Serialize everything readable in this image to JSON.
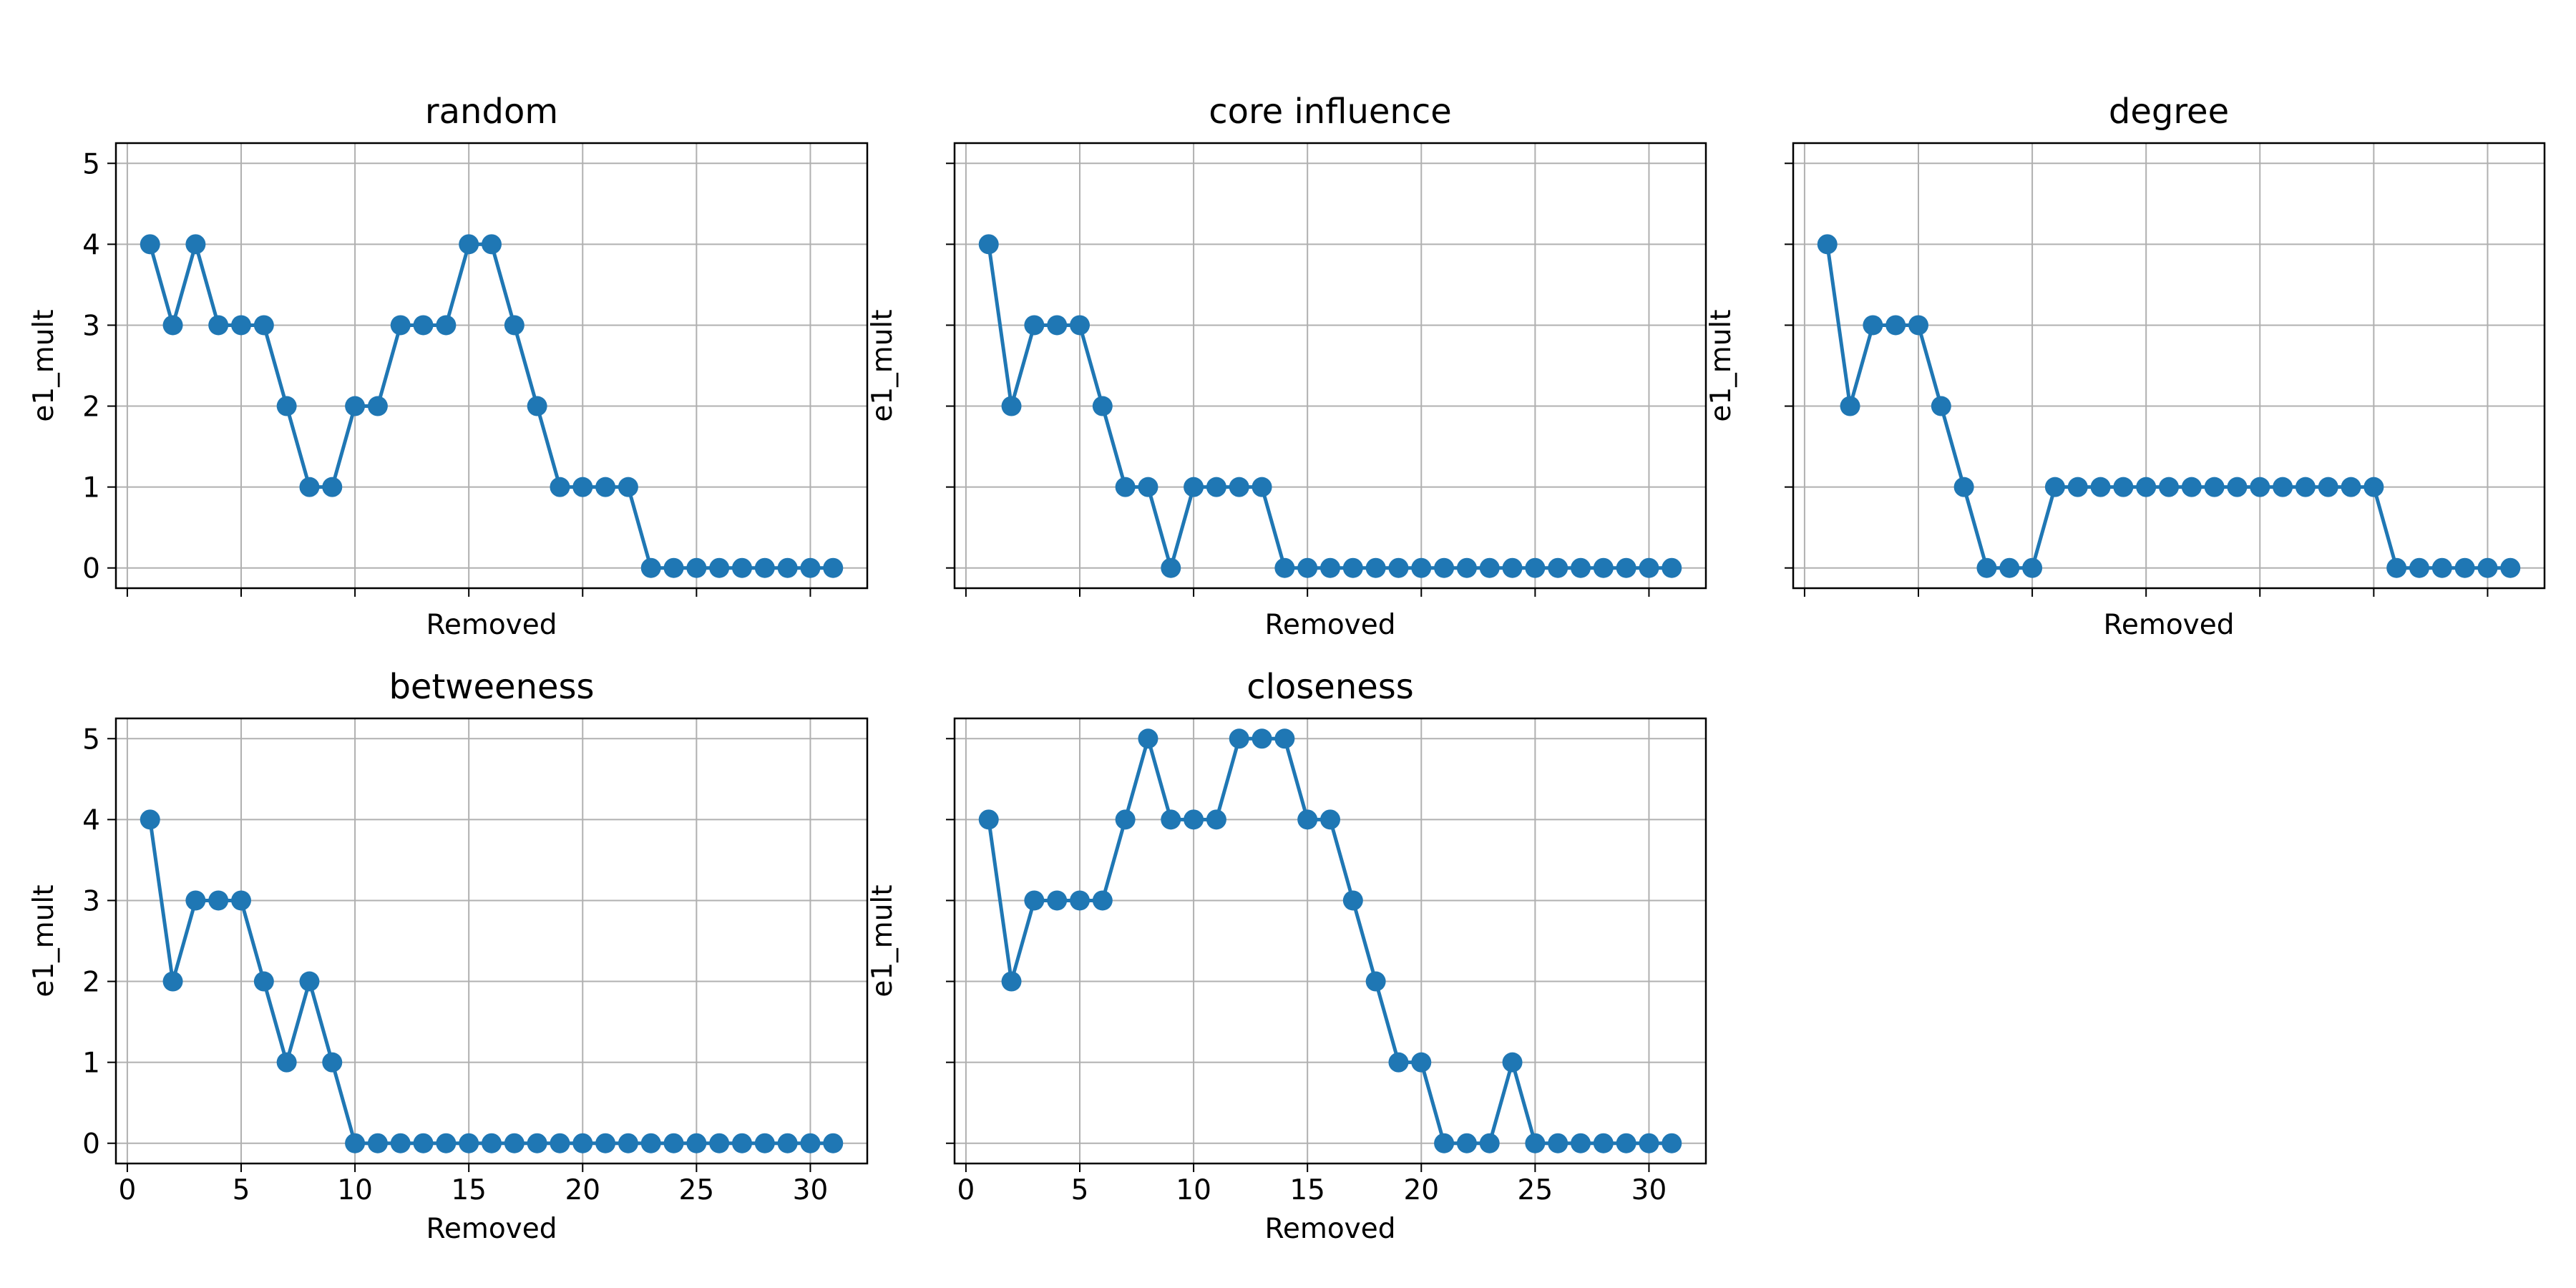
{
  "chart_data": [
    {
      "type": "line",
      "title": "random",
      "xlabel": "Removed",
      "ylabel": "e1_mult",
      "x": [
        1,
        2,
        3,
        4,
        5,
        6,
        7,
        8,
        9,
        10,
        11,
        12,
        13,
        14,
        15,
        16,
        17,
        18,
        19,
        20,
        21,
        22,
        23,
        24,
        25,
        26,
        27,
        28,
        29,
        30,
        31
      ],
      "values": [
        4,
        3,
        4,
        3,
        3,
        3,
        2,
        1,
        1,
        2,
        2,
        3,
        3,
        3,
        4,
        4,
        3,
        2,
        1,
        1,
        1,
        1,
        0,
        0,
        0,
        0,
        0,
        0,
        0,
        0,
        0
      ],
      "xlim": [
        -0.5,
        32.5
      ],
      "ylim": [
        -0.25,
        5.25
      ],
      "xticks": [
        0,
        5,
        10,
        15,
        20,
        25,
        30
      ],
      "yticks": [
        0,
        1,
        2,
        3,
        4,
        5
      ],
      "show_xtick_labels": false,
      "show_ytick_labels": true,
      "grid": true,
      "color": "#1f77b4",
      "marker": "circle"
    },
    {
      "type": "line",
      "title": "core influence",
      "xlabel": "Removed",
      "ylabel": "e1_mult",
      "x": [
        1,
        2,
        3,
        4,
        5,
        6,
        7,
        8,
        9,
        10,
        11,
        12,
        13,
        14,
        15,
        16,
        17,
        18,
        19,
        20,
        21,
        22,
        23,
        24,
        25,
        26,
        27,
        28,
        29,
        30,
        31
      ],
      "values": [
        4,
        2,
        3,
        3,
        3,
        2,
        1,
        1,
        0,
        1,
        1,
        1,
        1,
        0,
        0,
        0,
        0,
        0,
        0,
        0,
        0,
        0,
        0,
        0,
        0,
        0,
        0,
        0,
        0,
        0,
        0
      ],
      "xlim": [
        -0.5,
        32.5
      ],
      "ylim": [
        -0.25,
        5.25
      ],
      "xticks": [
        0,
        5,
        10,
        15,
        20,
        25,
        30
      ],
      "yticks": [
        0,
        1,
        2,
        3,
        4,
        5
      ],
      "show_xtick_labels": false,
      "show_ytick_labels": false,
      "grid": true,
      "color": "#1f77b4",
      "marker": "circle"
    },
    {
      "type": "line",
      "title": "degree",
      "xlabel": "Removed",
      "ylabel": "e1_mult",
      "x": [
        1,
        2,
        3,
        4,
        5,
        6,
        7,
        8,
        9,
        10,
        11,
        12,
        13,
        14,
        15,
        16,
        17,
        18,
        19,
        20,
        21,
        22,
        23,
        24,
        25,
        26,
        27,
        28,
        29,
        30,
        31
      ],
      "values": [
        4,
        2,
        3,
        3,
        3,
        2,
        1,
        0,
        0,
        0,
        1,
        1,
        1,
        1,
        1,
        1,
        1,
        1,
        1,
        1,
        1,
        1,
        1,
        1,
        1,
        0,
        0,
        0,
        0,
        0,
        0
      ],
      "xlim": [
        -0.5,
        32.5
      ],
      "ylim": [
        -0.25,
        5.25
      ],
      "xticks": [
        0,
        5,
        10,
        15,
        20,
        25,
        30
      ],
      "yticks": [
        0,
        1,
        2,
        3,
        4,
        5
      ],
      "show_xtick_labels": false,
      "show_ytick_labels": false,
      "grid": true,
      "color": "#1f77b4",
      "marker": "circle"
    },
    {
      "type": "line",
      "title": "betweeness",
      "xlabel": "Removed",
      "ylabel": "e1_mult",
      "x": [
        1,
        2,
        3,
        4,
        5,
        6,
        7,
        8,
        9,
        10,
        11,
        12,
        13,
        14,
        15,
        16,
        17,
        18,
        19,
        20,
        21,
        22,
        23,
        24,
        25,
        26,
        27,
        28,
        29,
        30,
        31
      ],
      "values": [
        4,
        2,
        3,
        3,
        3,
        2,
        1,
        2,
        1,
        0,
        0,
        0,
        0,
        0,
        0,
        0,
        0,
        0,
        0,
        0,
        0,
        0,
        0,
        0,
        0,
        0,
        0,
        0,
        0,
        0,
        0
      ],
      "xlim": [
        -0.5,
        32.5
      ],
      "ylim": [
        -0.25,
        5.25
      ],
      "xticks": [
        0,
        5,
        10,
        15,
        20,
        25,
        30
      ],
      "yticks": [
        0,
        1,
        2,
        3,
        4,
        5
      ],
      "show_xtick_labels": true,
      "show_ytick_labels": true,
      "grid": true,
      "color": "#1f77b4",
      "marker": "circle"
    },
    {
      "type": "line",
      "title": "closeness",
      "xlabel": "Removed",
      "ylabel": "e1_mult",
      "x": [
        1,
        2,
        3,
        4,
        5,
        6,
        7,
        8,
        9,
        10,
        11,
        12,
        13,
        14,
        15,
        16,
        17,
        18,
        19,
        20,
        21,
        22,
        23,
        24,
        25,
        26,
        27,
        28,
        29,
        30,
        31
      ],
      "values": [
        4,
        2,
        3,
        3,
        3,
        3,
        4,
        5,
        4,
        4,
        4,
        5,
        5,
        5,
        4,
        4,
        3,
        2,
        1,
        1,
        0,
        0,
        0,
        1,
        0,
        0,
        0,
        0,
        0,
        0,
        0
      ],
      "xlim": [
        -0.5,
        32.5
      ],
      "ylim": [
        -0.25,
        5.25
      ],
      "xticks": [
        0,
        5,
        10,
        15,
        20,
        25,
        30
      ],
      "yticks": [
        0,
        1,
        2,
        3,
        4,
        5
      ],
      "show_xtick_labels": true,
      "show_ytick_labels": false,
      "grid": true,
      "color": "#1f77b4",
      "marker": "circle"
    }
  ]
}
